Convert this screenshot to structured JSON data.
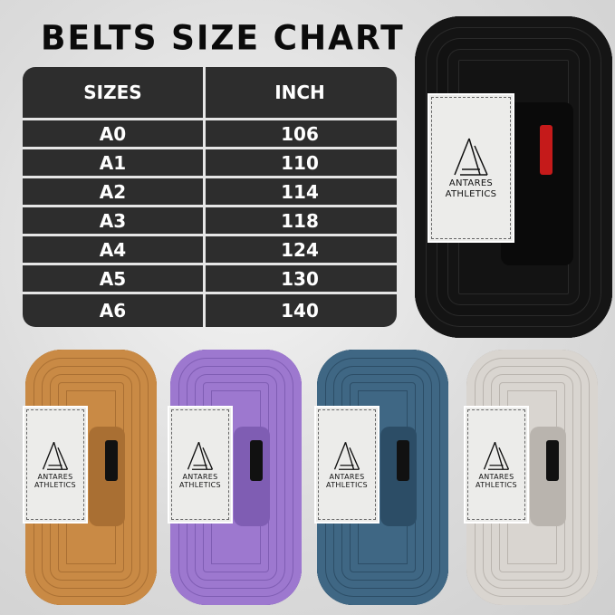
{
  "title": "BELTS SIZE CHART",
  "table": {
    "headers": [
      "SIZES",
      "INCH"
    ],
    "rows": [
      [
        "A0",
        "106"
      ],
      [
        "A1",
        "110"
      ],
      [
        "A2",
        "114"
      ],
      [
        "A3",
        "118"
      ],
      [
        "A4",
        "124"
      ],
      [
        "A5",
        "130"
      ],
      [
        "A6",
        "140"
      ]
    ]
  },
  "brand": {
    "line1": "ANTARES",
    "line2": "ATHLETICS"
  },
  "belts": [
    {
      "color": "black",
      "hex": "#111111"
    },
    {
      "color": "brown",
      "hex": "#c98a45"
    },
    {
      "color": "purple",
      "hex": "#9d78cf"
    },
    {
      "color": "blue",
      "hex": "#3f6784"
    },
    {
      "color": "white",
      "hex": "#d9d5d0"
    }
  ]
}
